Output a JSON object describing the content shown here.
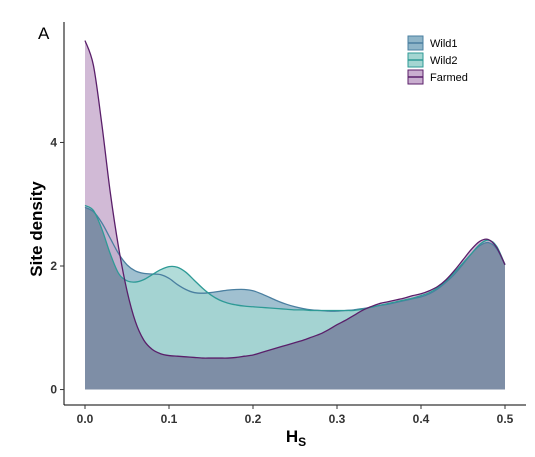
{
  "panel_label": "A",
  "chart_data": {
    "type": "area",
    "xlabel_main": "H",
    "xlabel_sub": "S",
    "ylabel": "Site density",
    "xlim": [
      -0.025,
      0.525
    ],
    "ylim": [
      -0.25,
      5.95
    ],
    "x_ticks": [
      0.0,
      0.1,
      0.2,
      0.3,
      0.4,
      0.5
    ],
    "x_tick_labels": [
      "0.0",
      "0.1",
      "0.2",
      "0.3",
      "0.4",
      "0.5"
    ],
    "y_ticks": [
      0,
      2,
      4
    ],
    "y_tick_labels": [
      "0",
      "2",
      "4"
    ],
    "grid": false,
    "legend_position": "top-right",
    "series": [
      {
        "name": "Wild1",
        "fill": "#8fb5c8",
        "stroke": "#4a7fa0",
        "x": [
          0.0,
          0.01,
          0.02,
          0.03,
          0.04,
          0.05,
          0.06,
          0.07,
          0.08,
          0.09,
          0.1,
          0.11,
          0.12,
          0.13,
          0.14,
          0.15,
          0.16,
          0.17,
          0.18,
          0.19,
          0.2,
          0.21,
          0.22,
          0.23,
          0.24,
          0.25,
          0.26,
          0.27,
          0.28,
          0.29,
          0.3,
          0.31,
          0.32,
          0.33,
          0.34,
          0.35,
          0.36,
          0.37,
          0.38,
          0.39,
          0.4,
          0.41,
          0.42,
          0.43,
          0.44,
          0.45,
          0.46,
          0.47,
          0.48,
          0.49,
          0.5
        ],
        "y": [
          2.95,
          2.88,
          2.7,
          2.45,
          2.2,
          2.02,
          1.92,
          1.88,
          1.87,
          1.86,
          1.8,
          1.7,
          1.62,
          1.57,
          1.56,
          1.57,
          1.59,
          1.61,
          1.62,
          1.62,
          1.6,
          1.55,
          1.49,
          1.43,
          1.38,
          1.34,
          1.31,
          1.29,
          1.28,
          1.27,
          1.27,
          1.28,
          1.29,
          1.31,
          1.33,
          1.36,
          1.38,
          1.41,
          1.44,
          1.47,
          1.5,
          1.55,
          1.63,
          1.74,
          1.87,
          2.03,
          2.2,
          2.33,
          2.38,
          2.28,
          2.02
        ]
      },
      {
        "name": "Wild2",
        "fill": "#a4d6d2",
        "stroke": "#2e9a96",
        "x": [
          0.0,
          0.01,
          0.02,
          0.03,
          0.04,
          0.05,
          0.06,
          0.07,
          0.08,
          0.09,
          0.1,
          0.11,
          0.12,
          0.13,
          0.14,
          0.15,
          0.16,
          0.17,
          0.18,
          0.19,
          0.2,
          0.21,
          0.22,
          0.23,
          0.24,
          0.25,
          0.26,
          0.27,
          0.28,
          0.29,
          0.3,
          0.31,
          0.32,
          0.33,
          0.34,
          0.35,
          0.36,
          0.37,
          0.38,
          0.39,
          0.4,
          0.41,
          0.42,
          0.43,
          0.44,
          0.45,
          0.46,
          0.47,
          0.48,
          0.49,
          0.5
        ],
        "y": [
          2.98,
          2.9,
          2.6,
          2.2,
          1.88,
          1.76,
          1.74,
          1.78,
          1.86,
          1.94,
          1.99,
          1.98,
          1.9,
          1.77,
          1.64,
          1.53,
          1.45,
          1.4,
          1.37,
          1.35,
          1.34,
          1.33,
          1.32,
          1.31,
          1.3,
          1.29,
          1.29,
          1.28,
          1.28,
          1.28,
          1.28,
          1.28,
          1.28,
          1.3,
          1.33,
          1.36,
          1.39,
          1.42,
          1.45,
          1.48,
          1.52,
          1.57,
          1.65,
          1.76,
          1.9,
          2.05,
          2.2,
          2.35,
          2.42,
          2.32,
          2.02
        ]
      },
      {
        "name": "Farmed",
        "fill": "#c9aecf",
        "stroke": "#5a1f6a",
        "x": [
          0.0,
          0.01,
          0.02,
          0.03,
          0.04,
          0.05,
          0.06,
          0.07,
          0.08,
          0.09,
          0.1,
          0.11,
          0.12,
          0.13,
          0.14,
          0.15,
          0.16,
          0.17,
          0.18,
          0.19,
          0.2,
          0.21,
          0.22,
          0.23,
          0.24,
          0.25,
          0.26,
          0.27,
          0.28,
          0.29,
          0.3,
          0.31,
          0.32,
          0.33,
          0.34,
          0.35,
          0.36,
          0.37,
          0.38,
          0.39,
          0.4,
          0.41,
          0.42,
          0.43,
          0.44,
          0.45,
          0.46,
          0.47,
          0.48,
          0.49,
          0.5
        ],
        "y": [
          5.65,
          5.25,
          4.3,
          3.2,
          2.3,
          1.6,
          1.1,
          0.8,
          0.65,
          0.58,
          0.55,
          0.54,
          0.53,
          0.52,
          0.51,
          0.51,
          0.51,
          0.51,
          0.52,
          0.54,
          0.56,
          0.6,
          0.64,
          0.68,
          0.72,
          0.76,
          0.8,
          0.85,
          0.9,
          0.97,
          1.05,
          1.12,
          1.2,
          1.28,
          1.34,
          1.39,
          1.42,
          1.45,
          1.48,
          1.52,
          1.55,
          1.6,
          1.67,
          1.78,
          1.93,
          2.1,
          2.27,
          2.4,
          2.43,
          2.3,
          2.02
        ]
      }
    ],
    "overlap_fill": "#7e8ea6"
  }
}
